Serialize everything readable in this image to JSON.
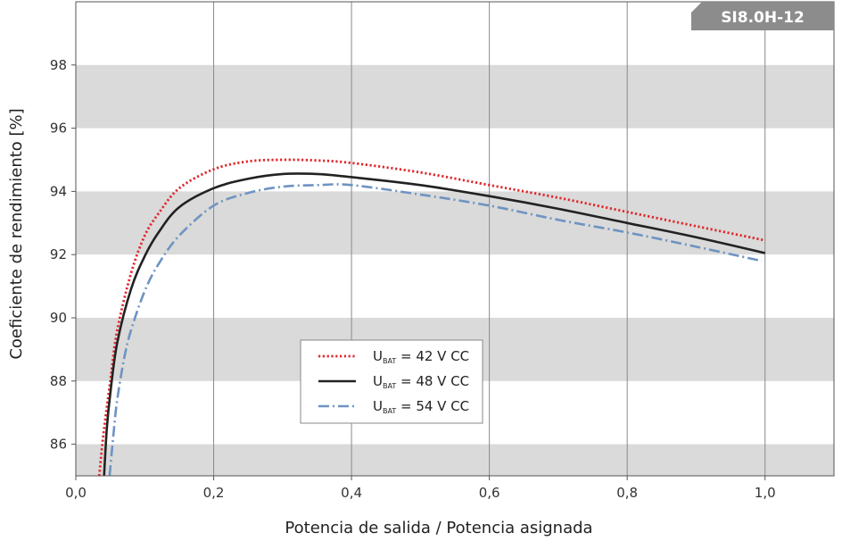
{
  "chart_data": {
    "type": "line",
    "badge": "SI8.0H-12",
    "xlabel": "Potencia de salida / Potencia asignada",
    "ylabel": "Coeficiente de rendimiento [%]",
    "xlim": [
      0,
      1.1
    ],
    "ylim": [
      85,
      100
    ],
    "x_ticks": [
      0,
      0.2,
      0.4,
      0.6,
      0.8,
      1.0
    ],
    "x_tick_labels": [
      "0,0",
      "0,2",
      "0,4",
      "0,6",
      "0,8",
      "1,0"
    ],
    "y_ticks": [
      86,
      88,
      90,
      92,
      94,
      96,
      98
    ],
    "y_tick_labels": [
      "86",
      "88",
      "90",
      "92",
      "94",
      "96",
      "98"
    ],
    "band_color": "#d9dad9",
    "grid": true,
    "legend_position": "center-left",
    "series": [
      {
        "name": "U_BAT = 42 V CC",
        "label_main": "U",
        "label_sub": "BAT",
        "label_rest": " = 42 V CC",
        "color": "#e0262c",
        "style": "dotted",
        "x": [
          0.034,
          0.04,
          0.05,
          0.06,
          0.08,
          0.1,
          0.12,
          0.15,
          0.2,
          0.25,
          0.3,
          0.35,
          0.4,
          0.5,
          0.6,
          0.7,
          0.8,
          0.9,
          1.0
        ],
        "y": [
          85.0,
          86.3,
          88.0,
          89.6,
          91.4,
          92.6,
          93.3,
          94.1,
          94.7,
          94.95,
          95.0,
          94.98,
          94.9,
          94.6,
          94.2,
          93.8,
          93.35,
          92.9,
          92.45
        ]
      },
      {
        "name": "U_BAT = 48 V CC",
        "label_main": "U",
        "label_sub": "BAT",
        "label_rest": " = 48 V CC",
        "color": "#222222",
        "style": "solid",
        "x": [
          0.041,
          0.045,
          0.05,
          0.06,
          0.08,
          0.1,
          0.12,
          0.15,
          0.2,
          0.25,
          0.3,
          0.35,
          0.4,
          0.5,
          0.6,
          0.7,
          0.8,
          0.9,
          1.0
        ],
        "y": [
          85.0,
          86.5,
          87.6,
          89.2,
          90.9,
          91.95,
          92.7,
          93.5,
          94.1,
          94.4,
          94.55,
          94.55,
          94.45,
          94.2,
          93.85,
          93.45,
          93.0,
          92.55,
          92.05
        ]
      },
      {
        "name": "U_BAT = 54 V CC",
        "label_main": "U",
        "label_sub": "BAT",
        "label_rest": " = 54 V CC",
        "color": "#6f93c2",
        "style": "dashdot",
        "x": [
          0.049,
          0.055,
          0.06,
          0.07,
          0.08,
          0.1,
          0.12,
          0.15,
          0.2,
          0.25,
          0.3,
          0.35,
          0.4,
          0.5,
          0.6,
          0.7,
          0.8,
          0.9,
          0.995
        ],
        "y": [
          85.0,
          86.4,
          87.4,
          88.7,
          89.6,
          90.85,
          91.7,
          92.6,
          93.55,
          93.95,
          94.15,
          94.2,
          94.2,
          93.9,
          93.55,
          93.1,
          92.7,
          92.25,
          91.8
        ]
      }
    ]
  }
}
